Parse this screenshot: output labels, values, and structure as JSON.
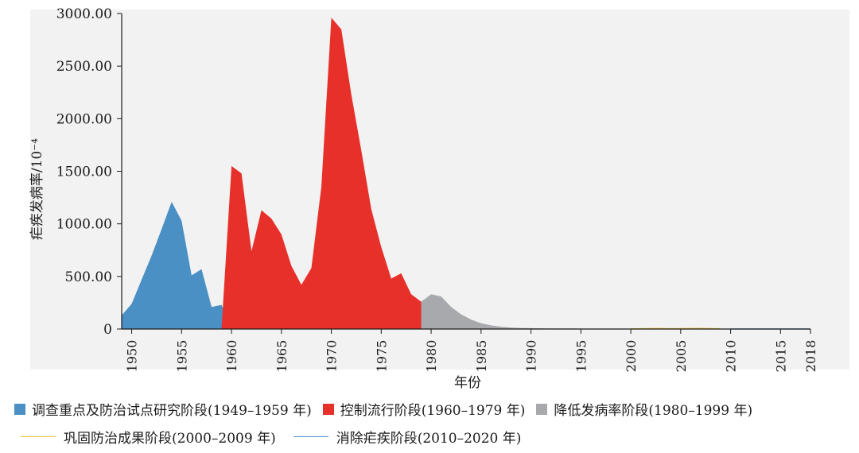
{
  "chart_data": {
    "type": "area",
    "xlabel": "年份",
    "ylabel": "疟疾发病率/10⁻⁴",
    "xlim": [
      1949,
      2018
    ],
    "ylim": [
      0,
      3000
    ],
    "x_ticks": [
      "1950",
      "1955",
      "1960",
      "1965",
      "1970",
      "1975",
      "1980",
      "1985",
      "1990",
      "1995",
      "2000",
      "2005",
      "2010",
      "2015",
      "2018"
    ],
    "y_ticks": [
      "0",
      "500.00",
      "1000.00",
      "1500.00",
      "2000.00",
      "2500.00",
      "3000.00"
    ],
    "series": [
      {
        "name": "调查重点及防治试点研究阶段(1949–1959 年)",
        "style": "area",
        "color": "#4a90c4",
        "x": [
          1949,
          1950,
          1951,
          1952,
          1953,
          1954,
          1955,
          1956,
          1957,
          1958,
          1959,
          1960
        ],
        "y": [
          130,
          240,
          470,
          700,
          950,
          1210,
          1030,
          510,
          570,
          210,
          230,
          0
        ]
      },
      {
        "name": "控制流行阶段(1960–1979 年)",
        "style": "area",
        "color": "#e8302a",
        "x": [
          1959,
          1960,
          1961,
          1962,
          1963,
          1964,
          1965,
          1966,
          1967,
          1968,
          1969,
          1970,
          1971,
          1972,
          1973,
          1974,
          1975,
          1976,
          1977,
          1978,
          1979,
          1980
        ],
        "y": [
          0,
          1550,
          1480,
          740,
          1130,
          1050,
          900,
          600,
          420,
          580,
          1350,
          2960,
          2850,
          2230,
          1700,
          1140,
          780,
          480,
          530,
          330,
          260,
          0
        ]
      },
      {
        "name": "降低发病率阶段(1980–1999 年)",
        "style": "area",
        "color": "#a7a9ac",
        "x": [
          1979,
          1980,
          1981,
          1982,
          1983,
          1984,
          1985,
          1986,
          1987,
          1988,
          1989,
          1990,
          1991,
          1992,
          1993,
          1994,
          1995,
          1996,
          1997,
          1998,
          1999
        ],
        "y": [
          260,
          330,
          310,
          210,
          140,
          90,
          55,
          35,
          22,
          14,
          10,
          8,
          7,
          6,
          5,
          5,
          4,
          4,
          4,
          3,
          3
        ]
      },
      {
        "name": "巩固防治成果阶段(2000–2009 年)",
        "style": "line",
        "color": "#e8c43a",
        "x": [
          2000,
          2001,
          2002,
          2003,
          2004,
          2005,
          2006,
          2007,
          2008,
          2009
        ],
        "y": [
          2,
          3,
          4,
          5,
          3,
          4,
          5,
          6,
          4,
          2
        ]
      },
      {
        "name": "消除疟疾阶段(2010–2020 年)",
        "style": "line",
        "color": "#5b8fc7",
        "x": [
          2010,
          2011,
          2012,
          2013,
          2014,
          2015,
          2016,
          2017,
          2018
        ],
        "y": [
          1,
          1,
          1,
          1,
          1,
          1,
          1,
          1,
          1
        ]
      }
    ],
    "grid": false,
    "plot_background": "#f2f2f2",
    "legend_position": "bottom"
  }
}
